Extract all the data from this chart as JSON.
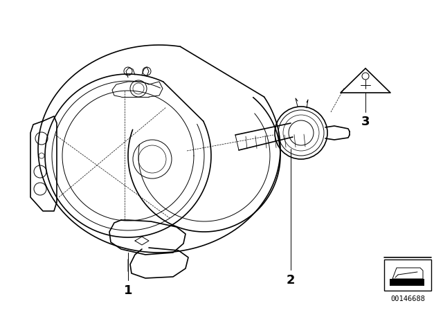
{
  "bg_color": "#ffffff",
  "line_color": "#000000",
  "label_1": "1",
  "label_2": "2",
  "label_3": "3",
  "part_number": "00146688",
  "fig_width": 6.4,
  "fig_height": 4.48,
  "dpi": 100
}
